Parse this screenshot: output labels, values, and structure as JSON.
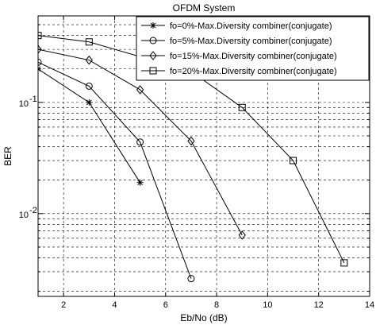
{
  "chart_data": {
    "type": "line",
    "title": "OFDM System",
    "xlabel": "Eb/No (dB)",
    "ylabel": "BER",
    "xlim": [
      1,
      14
    ],
    "ylim": [
      0.0018,
      0.6
    ],
    "yscale": "log",
    "grid": true,
    "grid_style": "dashed",
    "legend_position": "top-right",
    "x_ticks": [
      2,
      4,
      6,
      8,
      10,
      12,
      14
    ],
    "x_tick_labels": [
      "2",
      "4",
      "6",
      "8",
      "10",
      "12",
      "14"
    ],
    "y_ticks": [
      0.01,
      0.1
    ],
    "y_tick_labels": [
      {
        "base": "10",
        "exp": "-2"
      },
      {
        "base": "10",
        "exp": "-1"
      }
    ],
    "series": [
      {
        "name": "fo=0%-Max.Diversity combiner(conjugate)",
        "marker": "asterisk",
        "color": "#000000",
        "x": [
          1,
          3,
          5
        ],
        "y": [
          0.2,
          0.1,
          0.019
        ]
      },
      {
        "name": "fo=5%-Max.Diversity combiner(conjugate)",
        "marker": "circle",
        "color": "#000000",
        "x": [
          1,
          3,
          5,
          7
        ],
        "y": [
          0.23,
          0.14,
          0.044,
          0.0026
        ]
      },
      {
        "name": "fo=15%-Max.Diversity combiner(conjugate)",
        "marker": "diamond",
        "color": "#000000",
        "x": [
          1,
          3,
          5,
          7,
          9
        ],
        "y": [
          0.3,
          0.24,
          0.13,
          0.045,
          0.0064
        ]
      },
      {
        "name": "fo=20%-Max.Diversity combiner(conjugate)",
        "marker": "square",
        "color": "#000000",
        "x": [
          1,
          3,
          7,
          9,
          11,
          13
        ],
        "y": [
          0.4,
          0.35,
          0.19,
          0.09,
          0.03,
          0.0036
        ]
      }
    ]
  }
}
